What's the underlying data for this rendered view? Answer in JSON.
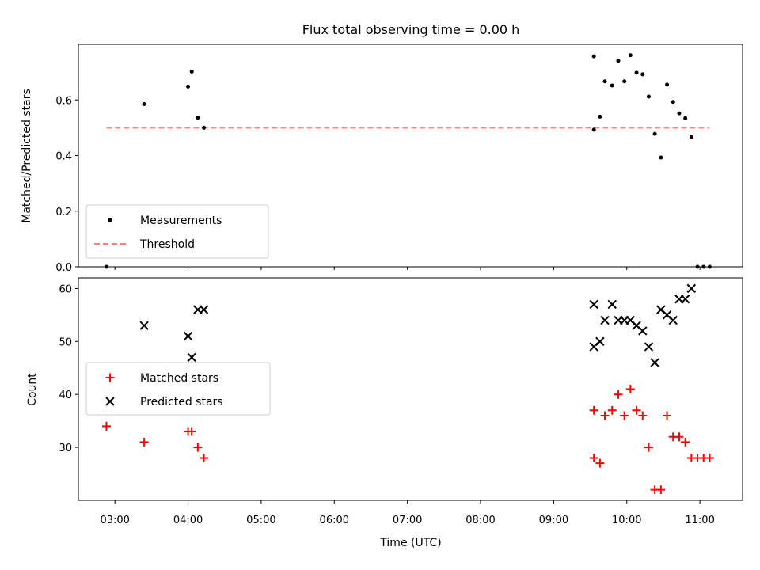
{
  "chart_data": [
    {
      "type": "scatter",
      "title": "Flux total observing time = 0.00 h",
      "xlabel": "",
      "ylabel": "Matched/Predicted stars",
      "xlim": [
        "02:30",
        "11:35"
      ],
      "ylim": [
        0.0,
        0.8
      ],
      "yticks": [
        "0.0",
        "0.2",
        "0.4",
        "0.6"
      ],
      "grid": false,
      "legend_position": "lower-left",
      "colors": {
        "measurements": "#000000",
        "threshold": "#ff7f7f"
      },
      "series": [
        {
          "name": "Measurements",
          "marker": "dot",
          "x": [
            "02:53",
            "03:24",
            "04:00",
            "04:03",
            "04:08",
            "04:13",
            "09:33",
            "09:33",
            "09:38",
            "09:42",
            "09:48",
            "09:53",
            "09:58",
            "10:03",
            "10:08",
            "10:13",
            "10:18",
            "10:23",
            "10:28",
            "10:33",
            "10:38",
            "10:43",
            "10:48",
            "10:53",
            "10:58",
            "11:03",
            "11:08"
          ],
          "y": [
            0.0,
            0.585,
            0.648,
            0.702,
            0.536,
            0.5,
            0.757,
            0.493,
            0.54,
            0.667,
            0.652,
            0.741,
            0.667,
            0.761,
            0.698,
            0.692,
            0.612,
            0.478,
            0.393,
            0.655,
            0.593,
            0.552,
            0.534,
            0.466,
            0.0,
            0.0,
            0.0
          ]
        },
        {
          "name": "Threshold",
          "marker": "dashed-line",
          "x": [
            "02:53",
            "11:08"
          ],
          "y": [
            0.5,
            0.5
          ]
        }
      ]
    },
    {
      "type": "scatter",
      "title": "",
      "xlabel": "Time (UTC)",
      "ylabel": "Count",
      "xlim": [
        "02:30",
        "11:35"
      ],
      "ylim": [
        20,
        62
      ],
      "yticks": [
        "30",
        "40",
        "50",
        "60"
      ],
      "xticks": [
        "03:00",
        "04:00",
        "05:00",
        "06:00",
        "07:00",
        "08:00",
        "09:00",
        "10:00",
        "11:00"
      ],
      "grid": false,
      "legend_position": "center-left",
      "colors": {
        "matched": "#ff0000",
        "predicted": "#000000"
      },
      "series": [
        {
          "name": "Matched stars",
          "marker": "plus",
          "x": [
            "02:53",
            "03:24",
            "04:00",
            "04:03",
            "04:08",
            "04:13",
            "09:33",
            "09:33",
            "09:38",
            "09:42",
            "09:48",
            "09:53",
            "09:58",
            "10:03",
            "10:08",
            "10:13",
            "10:18",
            "10:23",
            "10:28",
            "10:33",
            "10:38",
            "10:43",
            "10:48",
            "10:53",
            "10:58",
            "11:03",
            "11:08"
          ],
          "y": [
            34,
            31,
            33,
            33,
            30,
            28,
            37,
            28,
            27,
            36,
            37,
            40,
            36,
            41,
            37,
            36,
            30,
            22,
            22,
            36,
            32,
            32,
            31,
            28,
            28,
            28,
            28
          ]
        },
        {
          "name": "Predicted stars",
          "marker": "x",
          "x": [
            "03:24",
            "04:00",
            "04:03",
            "04:08",
            "04:13",
            "09:33",
            "09:33",
            "09:38",
            "09:42",
            "09:48",
            "09:53",
            "09:58",
            "10:03",
            "10:08",
            "10:13",
            "10:18",
            "10:23",
            "10:28",
            "10:33",
            "10:38",
            "10:43",
            "10:48",
            "10:53"
          ],
          "y": [
            53,
            51,
            47,
            56,
            56,
            57,
            49,
            50,
            54,
            57,
            54,
            54,
            54,
            53,
            52,
            49,
            46,
            56,
            55,
            54,
            58,
            58,
            60
          ]
        }
      ]
    }
  ]
}
